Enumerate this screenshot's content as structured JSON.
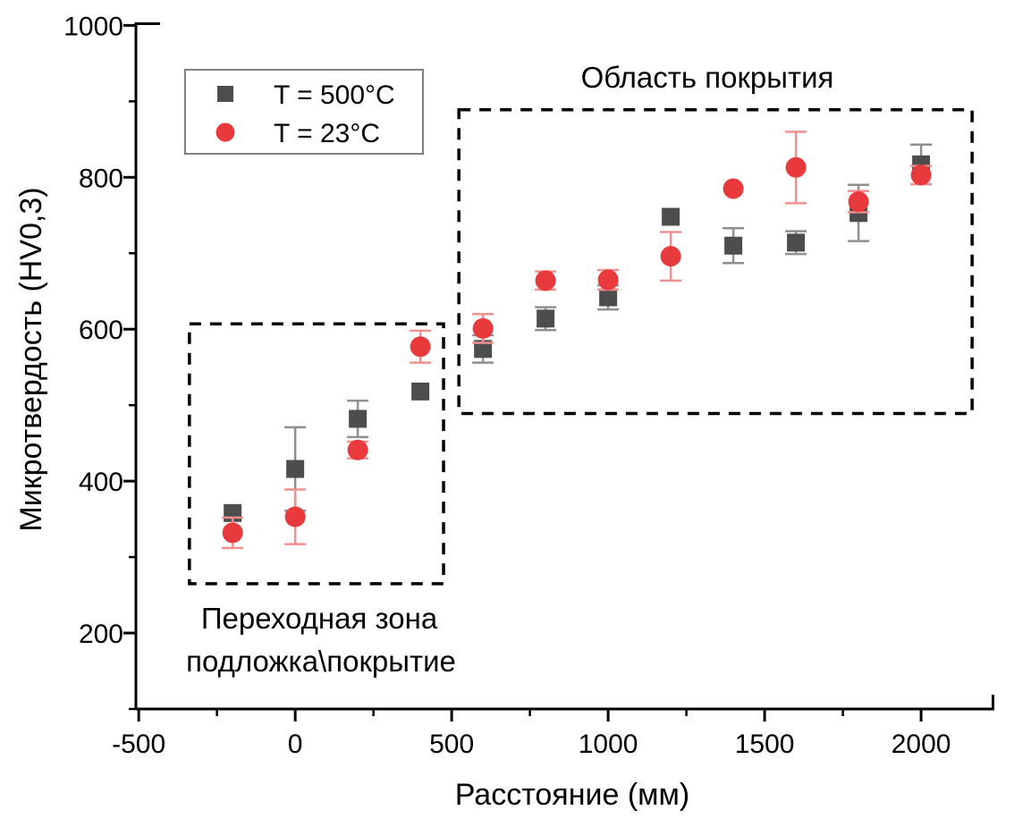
{
  "figure": {
    "background": "#ffffff",
    "text_color": "#000000",
    "axis_color": "#000000",
    "legend_border_color": "#7f7f7f"
  },
  "chart_data": {
    "type": "scatter",
    "title": "",
    "xlabel": "Расстояние (мм)",
    "ylabel": "Микротвердость (HV0,3)",
    "xlim": [
      -509,
      2234
    ],
    "ylim": [
      100,
      1004
    ],
    "grid": false,
    "x_major_ticks": [
      -500,
      0,
      500,
      1000,
      1500,
      2000
    ],
    "x_minor_ticks": [
      -250,
      250,
      750,
      1250,
      1750
    ],
    "y_major_ticks": [
      200,
      400,
      600,
      800,
      1000
    ],
    "y_minor_ticks": [
      100,
      300,
      500,
      700,
      900
    ],
    "legend": {
      "position": "top-left"
    },
    "x": [
      -200,
      0,
      200,
      400,
      600,
      800,
      1000,
      1200,
      1400,
      1600,
      1800,
      2000
    ],
    "series": [
      {
        "name": "T = 500°C",
        "marker": "square",
        "color": "#4d4d4d",
        "error_color": "#8f8f8f",
        "values": [
          358,
          416,
          482,
          518,
          574,
          614,
          642,
          748,
          710,
          714,
          753,
          817
        ],
        "errors": [
          0,
          55,
          24,
          0,
          18,
          15,
          16,
          0,
          23,
          15,
          37,
          26
        ]
      },
      {
        "name": "T = 23°C",
        "marker": "circle",
        "color": "#e8393c",
        "error_color": "#f2908f",
        "values": [
          332,
          353,
          441,
          577,
          601,
          664,
          665,
          696,
          785,
          813,
          768,
          803
        ],
        "errors": [
          20,
          36,
          11,
          21,
          19,
          12,
          13,
          32,
          0,
          47,
          14,
          12
        ]
      }
    ],
    "annotations": [
      {
        "id": "coating-region-label",
        "text": "Область покрытия",
        "x": 1317,
        "y": 932
      },
      {
        "id": "transition-zone-label-line1",
        "text": "Переходная зона",
        "x": 77,
        "y": 219
      },
      {
        "id": "transition-zone-label-line2",
        "text": "подложка\\покрытие",
        "x": 83,
        "y": 162
      }
    ],
    "boxes": [
      {
        "id": "transition-zone-box",
        "x0": -338,
        "x1": 474,
        "y0": 265,
        "y1": 607
      },
      {
        "id": "coating-region-box",
        "x0": 523,
        "x1": 2163,
        "y0": 489,
        "y1": 889
      }
    ]
  }
}
